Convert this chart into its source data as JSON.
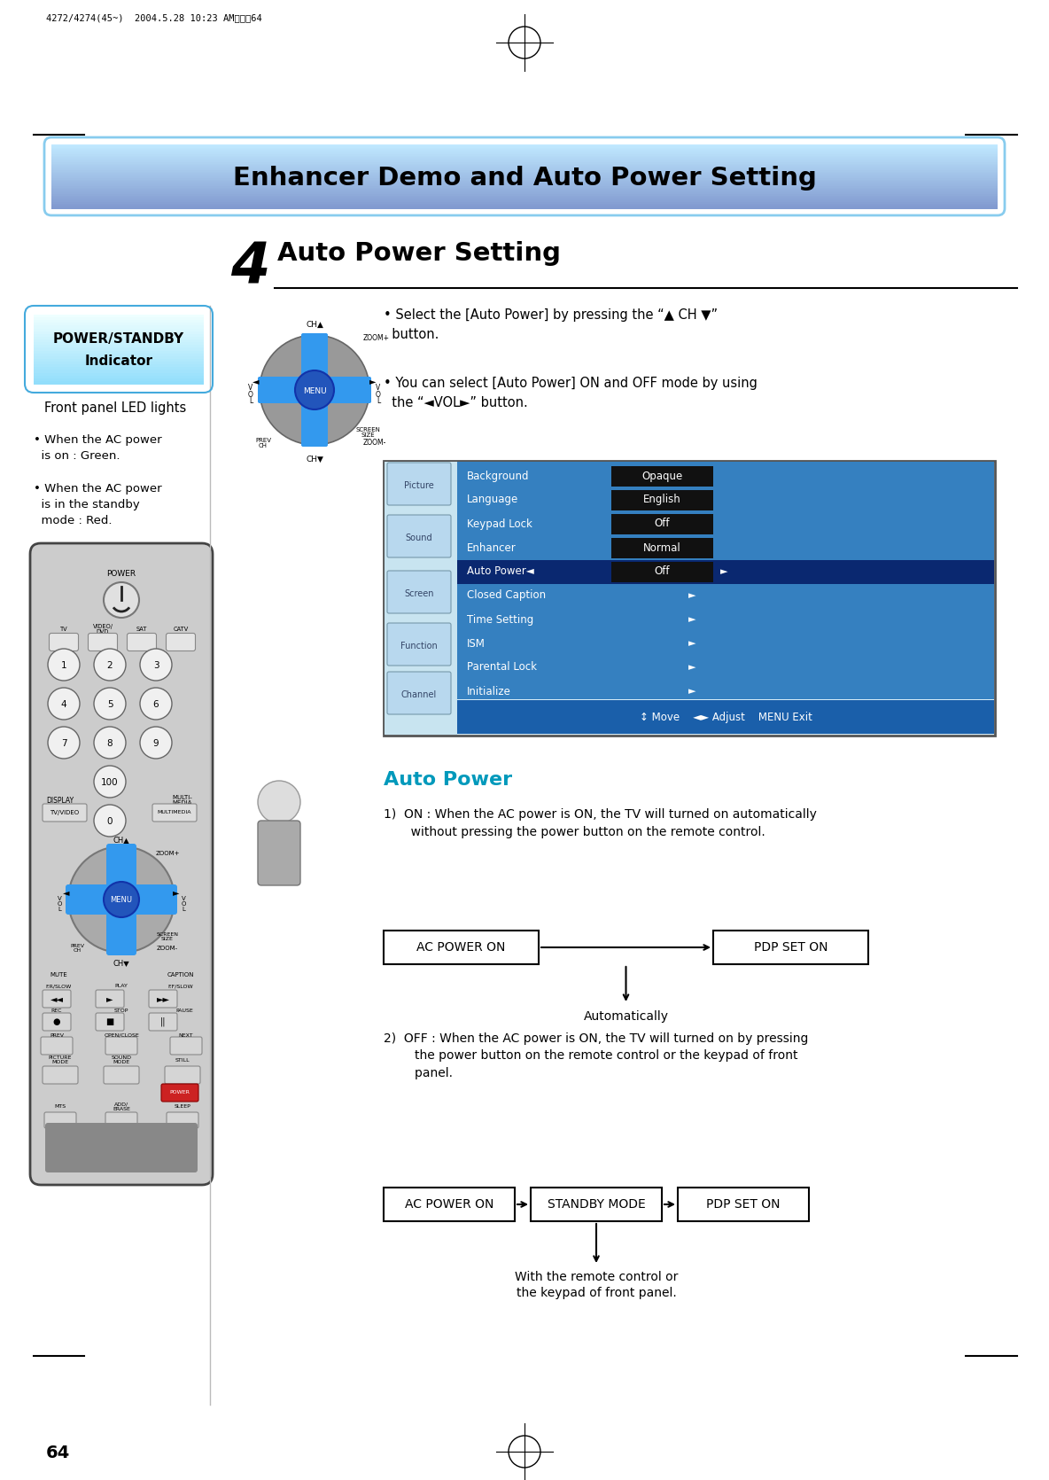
{
  "bg_color": "#ffffff",
  "header_text": "Enhancer Demo and Auto Power Setting",
  "page_num": "64",
  "header_meta": "4272/4274(45~)  2004.5.28 10:23 AM페이직64",
  "section_num": "4",
  "section_title": "Auto Power Setting",
  "bullet_ch": "• Select the [Auto Power] by pressing the “▲ CH ▼”\n  button.",
  "bullet_vol": "• You can select [Auto Power] ON and OFF mode by using\n  the “◄VOL►” button.",
  "menu_settings": [
    [
      "Background",
      "Opaque",
      false
    ],
    [
      "Language",
      "English",
      false
    ],
    [
      "Keypad Lock",
      "Off",
      false
    ],
    [
      "Enhancer",
      "Normal",
      false
    ],
    [
      "Auto Power◄",
      "Off",
      true
    ],
    [
      "Closed Caption",
      "►",
      false
    ],
    [
      "Time Setting",
      "►",
      false
    ],
    [
      "ISM",
      "►",
      false
    ],
    [
      "Parental Lock",
      "►",
      false
    ],
    [
      "Initialize",
      "►",
      false
    ]
  ],
  "menu_icon_labels": [
    "Picture",
    "Sound",
    "Screen",
    "Function",
    "Channel"
  ],
  "menu_footer": "↕ Move    ◄► Adjust    MENU Exit",
  "auto_power_title": "Auto Power",
  "on_text": "1)  ON : When the AC power is ON, the TV will turned on automatically\n       without pressing the power button on the remote control.",
  "off_text": "2)  OFF : When the AC power is ON, the TV will turned on by pressing\n        the power button on the remote control or the keypad of front\n        panel.",
  "box1_on_label": "AC POWER ON",
  "box2_on_label": "PDP SET ON",
  "auto_label": "Automatically",
  "box1_off_label": "AC POWER ON",
  "box2_off_label": "STANDBY MODE",
  "box3_off_label": "PDP SET ON",
  "with_remote_label": "With the remote control or\nthe keypad of front panel.",
  "front_panel_text": "Front panel LED lights",
  "bullet1": "• When the AC power\n  is on : Green.",
  "bullet2": "• When the AC power\n  is in the standby\n  mode : Red.",
  "cyan_color": "#0099bb",
  "menu_blue": "#3388cc",
  "menu_dark": "#1a4a90",
  "menu_highlight": "#0a2870",
  "menu_footer_blue": "#1a5faa",
  "menu_black_box": "#111111"
}
